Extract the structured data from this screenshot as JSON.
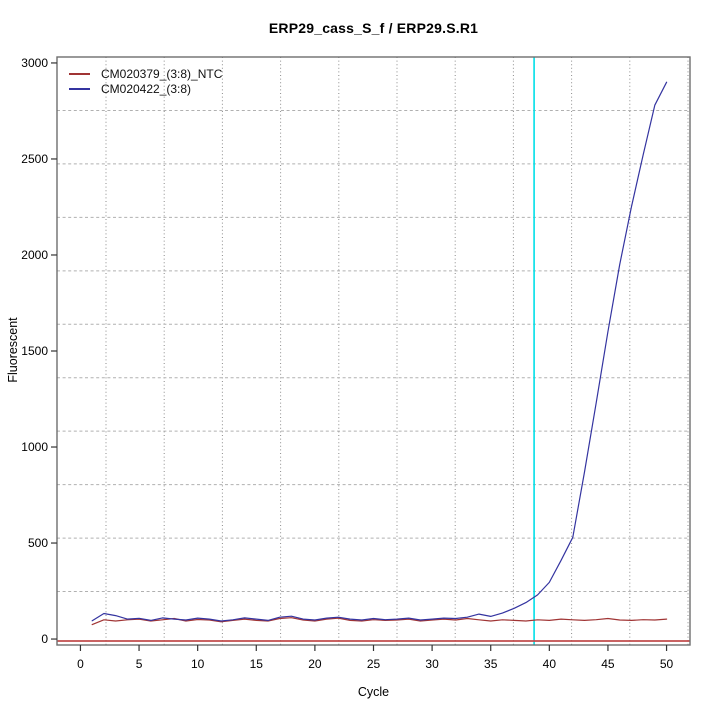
{
  "figure": {
    "background": "#ffffff"
  },
  "chart_data": {
    "type": "line",
    "title": "ERP29_cass_S_f / ERP29.S.R1",
    "xlabel": "Cycle",
    "ylabel": "Fluorescent",
    "x_ticks": [
      0,
      5,
      10,
      15,
      20,
      25,
      30,
      35,
      40,
      45,
      50
    ],
    "y_ticks": [
      0,
      500,
      1000,
      1500,
      2000,
      2500,
      3000
    ],
    "xlim": [
      -2,
      52
    ],
    "ylim": [
      -31,
      3031
    ],
    "grid": true,
    "legend_position": "top-left",
    "x": [
      1,
      2,
      3,
      4,
      5,
      6,
      7,
      8,
      9,
      10,
      11,
      12,
      13,
      14,
      15,
      16,
      17,
      18,
      19,
      20,
      21,
      22,
      23,
      24,
      25,
      26,
      27,
      28,
      29,
      30,
      31,
      32,
      33,
      34,
      35,
      36,
      37,
      38,
      39,
      40,
      41,
      42,
      43,
      44,
      45,
      46,
      47,
      48,
      49,
      50
    ],
    "series": [
      {
        "name": "CM020379_(3:8)_NTC",
        "color": "#a03434",
        "values": [
          75,
          100,
          94,
          100,
          104,
          94,
          100,
          107,
          94,
          102,
          99,
          90,
          97,
          104,
          97,
          94,
          107,
          111,
          99,
          94,
          104,
          109,
          97,
          94,
          101,
          97,
          99,
          104,
          94,
          99,
          104,
          99,
          107,
          100,
          94,
          100,
          97,
          94,
          100,
          97,
          104,
          100,
          97,
          101,
          107,
          99,
          97,
          101,
          99,
          104
        ]
      },
      {
        "name": "CM020422_(3:8)",
        "color": "#3434a0",
        "values": [
          95,
          133,
          122,
          104,
          108,
          97,
          110,
          104,
          99,
          109,
          104,
          94,
          100,
          110,
          104,
          97,
          114,
          119,
          104,
          99,
          109,
          114,
          104,
          99,
          107,
          101,
          104,
          109,
          99,
          104,
          109,
          107,
          114,
          130,
          118,
          135,
          160,
          190,
          230,
          295,
          410,
          530,
          870,
          1230,
          1600,
          1950,
          2250,
          2520,
          2780,
          2900
        ]
      }
    ],
    "threshold_line": {
      "value": -10,
      "color": "#c04848"
    },
    "ct_marker": {
      "cycle": 38.7,
      "color": "#00dfe8"
    }
  }
}
